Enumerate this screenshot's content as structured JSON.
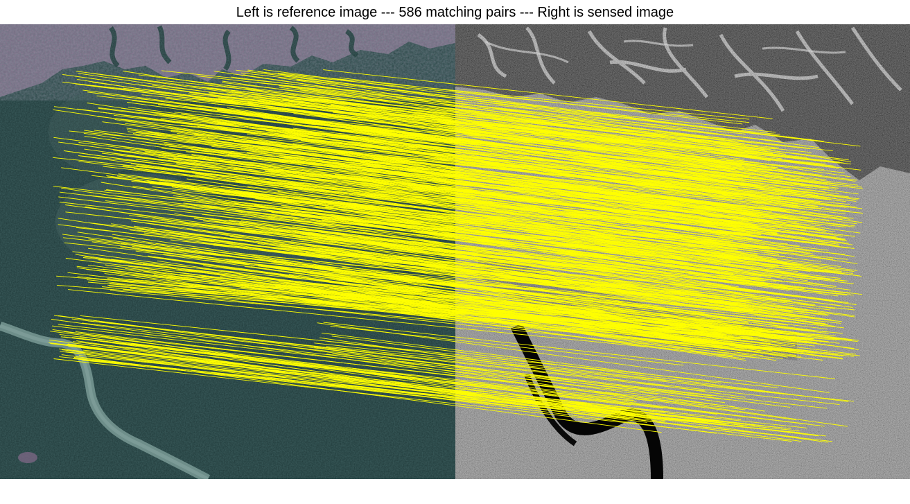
{
  "title": "Left is reference image --- 586 matching pairs --- Right is sensed image",
  "match_count": 586,
  "colors": {
    "match_line": "#ffff00",
    "background": "#ffffff",
    "title_text": "#000000",
    "reference_forest": "#1d3434",
    "reference_clearing": "#7a6580",
    "reference_river": "#6e8e8a",
    "sensed_base": "#7c7c7c",
    "sensed_dark": "#141414",
    "sensed_river": "#050505"
  },
  "panels": {
    "reference": {
      "name": "reference-image",
      "type": "optical satellite image"
    },
    "sensed": {
      "name": "sensed-image",
      "type": "SAR grayscale image"
    }
  }
}
